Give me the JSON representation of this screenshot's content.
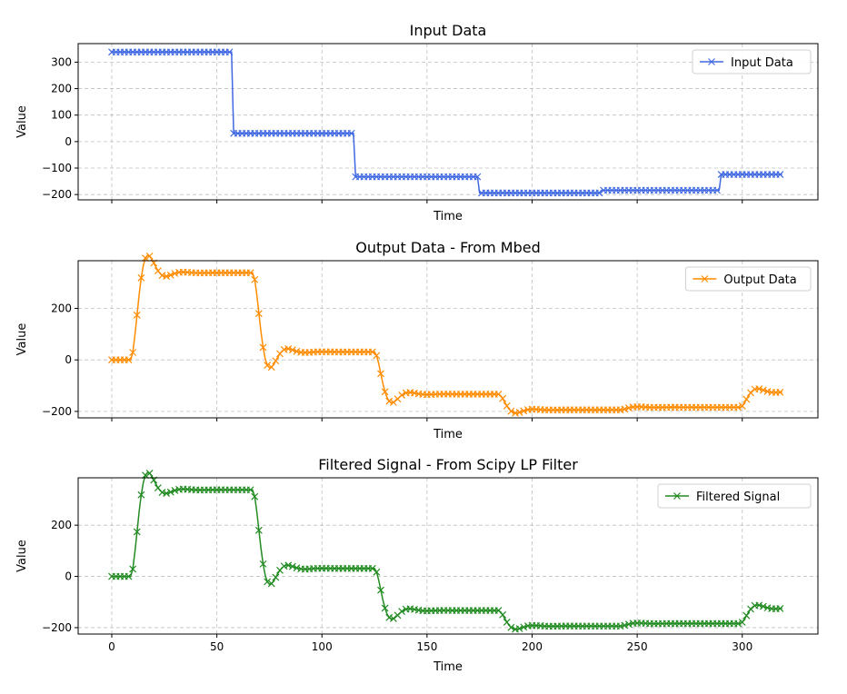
{
  "chart_data": [
    {
      "type": "line",
      "title": "Input Data",
      "xlabel": "Time",
      "ylabel": "Value",
      "xlim": [
        -16,
        336
      ],
      "ylim": [
        -220,
        370
      ],
      "xticks": [
        0,
        50,
        100,
        150,
        200,
        250,
        300
      ],
      "yticks": [
        -200,
        -100,
        0,
        100,
        200,
        300
      ],
      "ytick_labels": [
        "−200",
        "−100",
        "0",
        "100",
        "200",
        "300"
      ],
      "show_x_tick_labels": false,
      "grid": true,
      "legend_position": "top-right",
      "series": [
        {
          "name": "Input Data",
          "color": "#4169e1",
          "marker": "x",
          "segments": [
            {
              "x_start": 0,
              "x_end": 57,
              "y": 338
            },
            {
              "x_start": 58,
              "x_end": 115,
              "y": 31
            },
            {
              "x_start": 116,
              "x_end": 174,
              "y": -133
            },
            {
              "x_start": 175,
              "x_end": 232,
              "y": -194
            },
            {
              "x_start": 233,
              "x_end": 289,
              "y": -184
            },
            {
              "x_start": 290,
              "x_end": 319,
              "y": -124
            }
          ]
        }
      ]
    },
    {
      "type": "line",
      "title": "Output Data - From Mbed",
      "xlabel": "Time",
      "ylabel": "Value",
      "xlim": [
        -16,
        336
      ],
      "ylim": [
        -225,
        385
      ],
      "xticks": [
        0,
        50,
        100,
        150,
        200,
        250,
        300
      ],
      "yticks": [
        -200,
        0,
        200
      ],
      "ytick_labels": [
        "−200",
        "0",
        "200"
      ],
      "show_x_tick_labels": false,
      "grid": true,
      "legend_position": "top-right",
      "series": [
        {
          "name": "Output Data",
          "color": "#ff8c00",
          "marker": "x",
          "delay": 10,
          "initial": 0,
          "final": -124,
          "segments": [
            {
              "x_start": 0,
              "x_end": 57,
              "y": 338
            },
            {
              "x_start": 58,
              "x_end": 115,
              "y": 31
            },
            {
              "x_start": 116,
              "x_end": 174,
              "y": -133
            },
            {
              "x_start": 175,
              "x_end": 232,
              "y": -194
            },
            {
              "x_start": 233,
              "x_end": 289,
              "y": -184
            },
            {
              "x_start": 290,
              "x_end": 319,
              "y": -124
            }
          ]
        }
      ]
    },
    {
      "type": "line",
      "title": "Filtered Signal - From Scipy LP Filter",
      "xlabel": "Time",
      "ylabel": "Value",
      "xlim": [
        -16,
        336
      ],
      "ylim": [
        -225,
        385
      ],
      "xticks": [
        0,
        50,
        100,
        150,
        200,
        250,
        300
      ],
      "yticks": [
        -200,
        0,
        200
      ],
      "ytick_labels": [
        "−200",
        "0",
        "200"
      ],
      "show_x_tick_labels": true,
      "grid": true,
      "legend_position": "top-right",
      "series": [
        {
          "name": "Filtered Signal",
          "color": "#228b22",
          "marker": "x",
          "delay": 10,
          "initial": 0,
          "final": -124,
          "segments": [
            {
              "x_start": 0,
              "x_end": 57,
              "y": 338
            },
            {
              "x_start": 58,
              "x_end": 115,
              "y": 31
            },
            {
              "x_start": 116,
              "x_end": 174,
              "y": -133
            },
            {
              "x_start": 175,
              "x_end": 232,
              "y": -194
            },
            {
              "x_start": 233,
              "x_end": 289,
              "y": -184
            },
            {
              "x_start": 290,
              "x_end": 319,
              "y": -124
            }
          ]
        }
      ]
    }
  ]
}
